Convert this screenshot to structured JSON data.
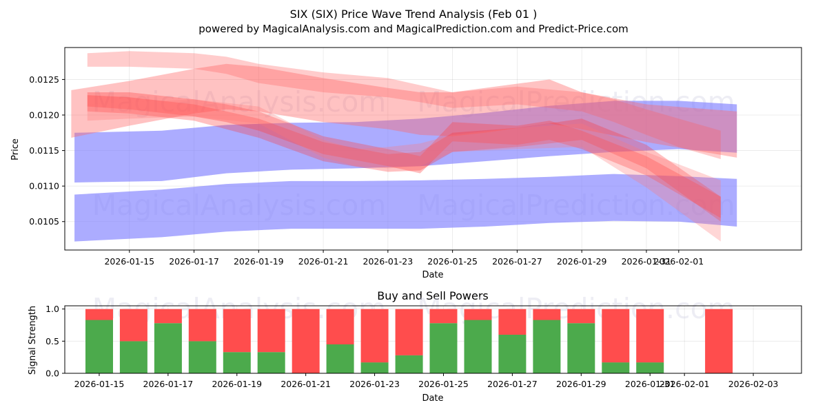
{
  "chart_data": [
    {
      "type": "area",
      "title": "SIX (SIX) Price Wave Trend Analysis (Feb 01 )",
      "subtitle": "powered by MagicalAnalysis.com and MagicalPrediction.com and Predict-Price.com",
      "xlabel": "Date",
      "ylabel": "Price",
      "xlim": [
        -2.0,
        20.8
      ],
      "ylim": [
        0.0101,
        0.01295
      ],
      "x_ticks": [
        {
          "x": 0,
          "label": "2026-01-15"
        },
        {
          "x": 2,
          "label": "2026-01-17"
        },
        {
          "x": 4,
          "label": "2026-01-19"
        },
        {
          "x": 6,
          "label": "2026-01-21"
        },
        {
          "x": 8,
          "label": "2026-01-23"
        },
        {
          "x": 10,
          "label": "2026-01-25"
        },
        {
          "x": 12,
          "label": "2026-01-27"
        },
        {
          "x": 14,
          "label": "2026-01-29"
        },
        {
          "x": 16,
          "label": "2026-01-31"
        },
        {
          "x": 17,
          "label": "2026-02-01"
        }
      ],
      "y_ticks": [
        {
          "y": 0.0105,
          "label": "0.0105"
        },
        {
          "y": 0.011,
          "label": "0.0110"
        },
        {
          "y": 0.0115,
          "label": "0.0115"
        },
        {
          "y": 0.012,
          "label": "0.0120"
        },
        {
          "y": 0.0125,
          "label": "0.0125"
        }
      ],
      "watermarks": [
        "MagicalAnalysis.com",
        "MagicalPrediction.com"
      ],
      "series": [
        {
          "name": "blue-upper-band",
          "color": "#8080ff",
          "opacity": 0.65,
          "x": [
            -1.7,
            1,
            3,
            5,
            7,
            9,
            11,
            13,
            15,
            17,
            18.8
          ],
          "upper": [
            0.01175,
            0.01178,
            0.01186,
            0.01189,
            0.0119,
            0.01195,
            0.01203,
            0.01213,
            0.0122,
            0.0122,
            0.01215
          ],
          "lower": [
            0.01105,
            0.01107,
            0.01118,
            0.01123,
            0.01125,
            0.01128,
            0.01135,
            0.01142,
            0.01148,
            0.01152,
            0.01147
          ]
        },
        {
          "name": "blue-lower-band",
          "color": "#8080ff",
          "opacity": 0.65,
          "x": [
            -1.7,
            1,
            3,
            5,
            7,
            9,
            11,
            13,
            15,
            17,
            18.8
          ],
          "upper": [
            0.01088,
            0.01095,
            0.01103,
            0.01107,
            0.01107,
            0.01108,
            0.0111,
            0.01113,
            0.01117,
            0.01114,
            0.0111
          ],
          "lower": [
            0.01022,
            0.01028,
            0.01036,
            0.0104,
            0.0104,
            0.0104,
            0.01043,
            0.01048,
            0.01051,
            0.0105,
            0.01043
          ]
        },
        {
          "name": "red-wave-1",
          "color": "#ff5555",
          "opacity": 0.3,
          "x": [
            -1.3,
            0,
            2,
            3,
            4,
            6,
            8,
            9,
            10,
            12,
            14,
            15,
            16,
            17,
            18.3
          ],
          "upper": [
            0.01287,
            0.0129,
            0.01287,
            0.01282,
            0.01272,
            0.0126,
            0.01252,
            0.01242,
            0.01232,
            0.0124,
            0.01232,
            0.01222,
            0.01208,
            0.01195,
            0.01178
          ],
          "lower": [
            0.01268,
            0.01268,
            0.01265,
            0.01258,
            0.01245,
            0.01232,
            0.01225,
            0.01218,
            0.0121,
            0.01215,
            0.01205,
            0.0119,
            0.01172,
            0.01155,
            0.01138
          ]
        },
        {
          "name": "red-wave-2",
          "color": "#ff6666",
          "opacity": 0.4,
          "x": [
            -1.8,
            0,
            2,
            3,
            4,
            6,
            8,
            9,
            10,
            11,
            13,
            14,
            16,
            18.8
          ],
          "upper": [
            0.01235,
            0.01248,
            0.01265,
            0.01272,
            0.01268,
            0.01252,
            0.01238,
            0.01232,
            0.01232,
            0.01238,
            0.0125,
            0.01232,
            0.01215,
            0.01205
          ],
          "lower": [
            0.01168,
            0.01185,
            0.01202,
            0.01208,
            0.01205,
            0.0119,
            0.0118,
            0.01172,
            0.0117,
            0.01175,
            0.01188,
            0.0118,
            0.01162,
            0.0114
          ]
        },
        {
          "name": "red-wave-3",
          "color": "#ff4444",
          "opacity": 0.35,
          "x": [
            -1.3,
            0,
            2,
            3,
            4,
            6,
            8,
            9,
            10,
            12,
            13,
            14,
            16,
            18.3
          ],
          "upper": [
            0.01232,
            0.01232,
            0.01222,
            0.01215,
            0.01205,
            0.0117,
            0.01152,
            0.01142,
            0.0119,
            0.01185,
            0.01192,
            0.01178,
            0.01142,
            0.01085
          ],
          "lower": [
            0.01212,
            0.01208,
            0.01198,
            0.0119,
            0.01178,
            0.01145,
            0.01128,
            0.01118,
            0.01163,
            0.01158,
            0.01165,
            0.01152,
            0.01115,
            0.01055
          ]
        },
        {
          "name": "red-wave-4",
          "color": "#ff3333",
          "opacity": 0.3,
          "x": [
            -1.3,
            0,
            2,
            3,
            4,
            6,
            8,
            9,
            10,
            12,
            14,
            16,
            18.3
          ],
          "upper": [
            0.01228,
            0.01225,
            0.01215,
            0.01205,
            0.01195,
            0.01162,
            0.01145,
            0.01148,
            0.01175,
            0.01182,
            0.01195,
            0.01158,
            0.01085
          ],
          "lower": [
            0.01205,
            0.01202,
            0.01192,
            0.0118,
            0.01168,
            0.01135,
            0.0112,
            0.01122,
            0.01148,
            0.01155,
            0.01165,
            0.01125,
            0.0105
          ],
          "note": "overlapping wave bands"
        },
        {
          "name": "red-wave-5",
          "color": "#ff7777",
          "opacity": 0.3,
          "x": [
            -1.3,
            0,
            2,
            4,
            6,
            7,
            8,
            9,
            10,
            12,
            14,
            16,
            18.3
          ],
          "upper": [
            0.01215,
            0.01218,
            0.01222,
            0.01212,
            0.01165,
            0.01152,
            0.01155,
            0.0116,
            0.01172,
            0.01182,
            0.01188,
            0.01148,
            0.01108
          ],
          "lower": [
            0.01192,
            0.01195,
            0.01198,
            0.01188,
            0.0114,
            0.01128,
            0.01125,
            0.01128,
            0.01148,
            0.01152,
            0.01155,
            0.01098,
            0.01022
          ]
        }
      ]
    },
    {
      "type": "bar",
      "title": "Buy and Sell Powers",
      "xlabel": "Date",
      "ylabel": "Signal Strength",
      "xlim": [
        -1.0,
        20.4
      ],
      "ylim": [
        0,
        1.05
      ],
      "y_ticks": [
        {
          "y": 0.0,
          "label": "0.0"
        },
        {
          "y": 0.5,
          "label": "0.5"
        },
        {
          "y": 1.0,
          "label": "1.0"
        }
      ],
      "x_ticks": [
        {
          "x": 0,
          "label": "2026-01-15"
        },
        {
          "x": 2,
          "label": "2026-01-17"
        },
        {
          "x": 4,
          "label": "2026-01-19"
        },
        {
          "x": 6,
          "label": "2026-01-21"
        },
        {
          "x": 8,
          "label": "2026-01-23"
        },
        {
          "x": 10,
          "label": "2026-01-25"
        },
        {
          "x": 12,
          "label": "2026-01-27"
        },
        {
          "x": 14,
          "label": "2026-01-29"
        },
        {
          "x": 16,
          "label": "2026-01-31"
        },
        {
          "x": 17,
          "label": "2026-02-01"
        },
        {
          "x": 19,
          "label": "2026-02-03"
        }
      ],
      "buy_color": "#4caa4c",
      "sell_color": "#ff4d4d",
      "bars": [
        {
          "x": 0,
          "buy": 0.83
        },
        {
          "x": 1,
          "buy": 0.5
        },
        {
          "x": 2,
          "buy": 0.78
        },
        {
          "x": 3,
          "buy": 0.5
        },
        {
          "x": 4,
          "buy": 0.33
        },
        {
          "x": 5,
          "buy": 0.33
        },
        {
          "x": 6,
          "buy": 0.0
        },
        {
          "x": 7,
          "buy": 0.45
        },
        {
          "x": 8,
          "buy": 0.17
        },
        {
          "x": 9,
          "buy": 0.28
        },
        {
          "x": 10,
          "buy": 0.78
        },
        {
          "x": 11,
          "buy": 0.83
        },
        {
          "x": 12,
          "buy": 0.6
        },
        {
          "x": 13,
          "buy": 0.83
        },
        {
          "x": 14,
          "buy": 0.78
        },
        {
          "x": 15,
          "buy": 0.17
        },
        {
          "x": 16,
          "buy": 0.17
        },
        {
          "x": 18,
          "buy": 0.0
        }
      ],
      "watermarks": [
        "MagicalAnalysis.com",
        "MagicalPrediction.com"
      ]
    }
  ]
}
